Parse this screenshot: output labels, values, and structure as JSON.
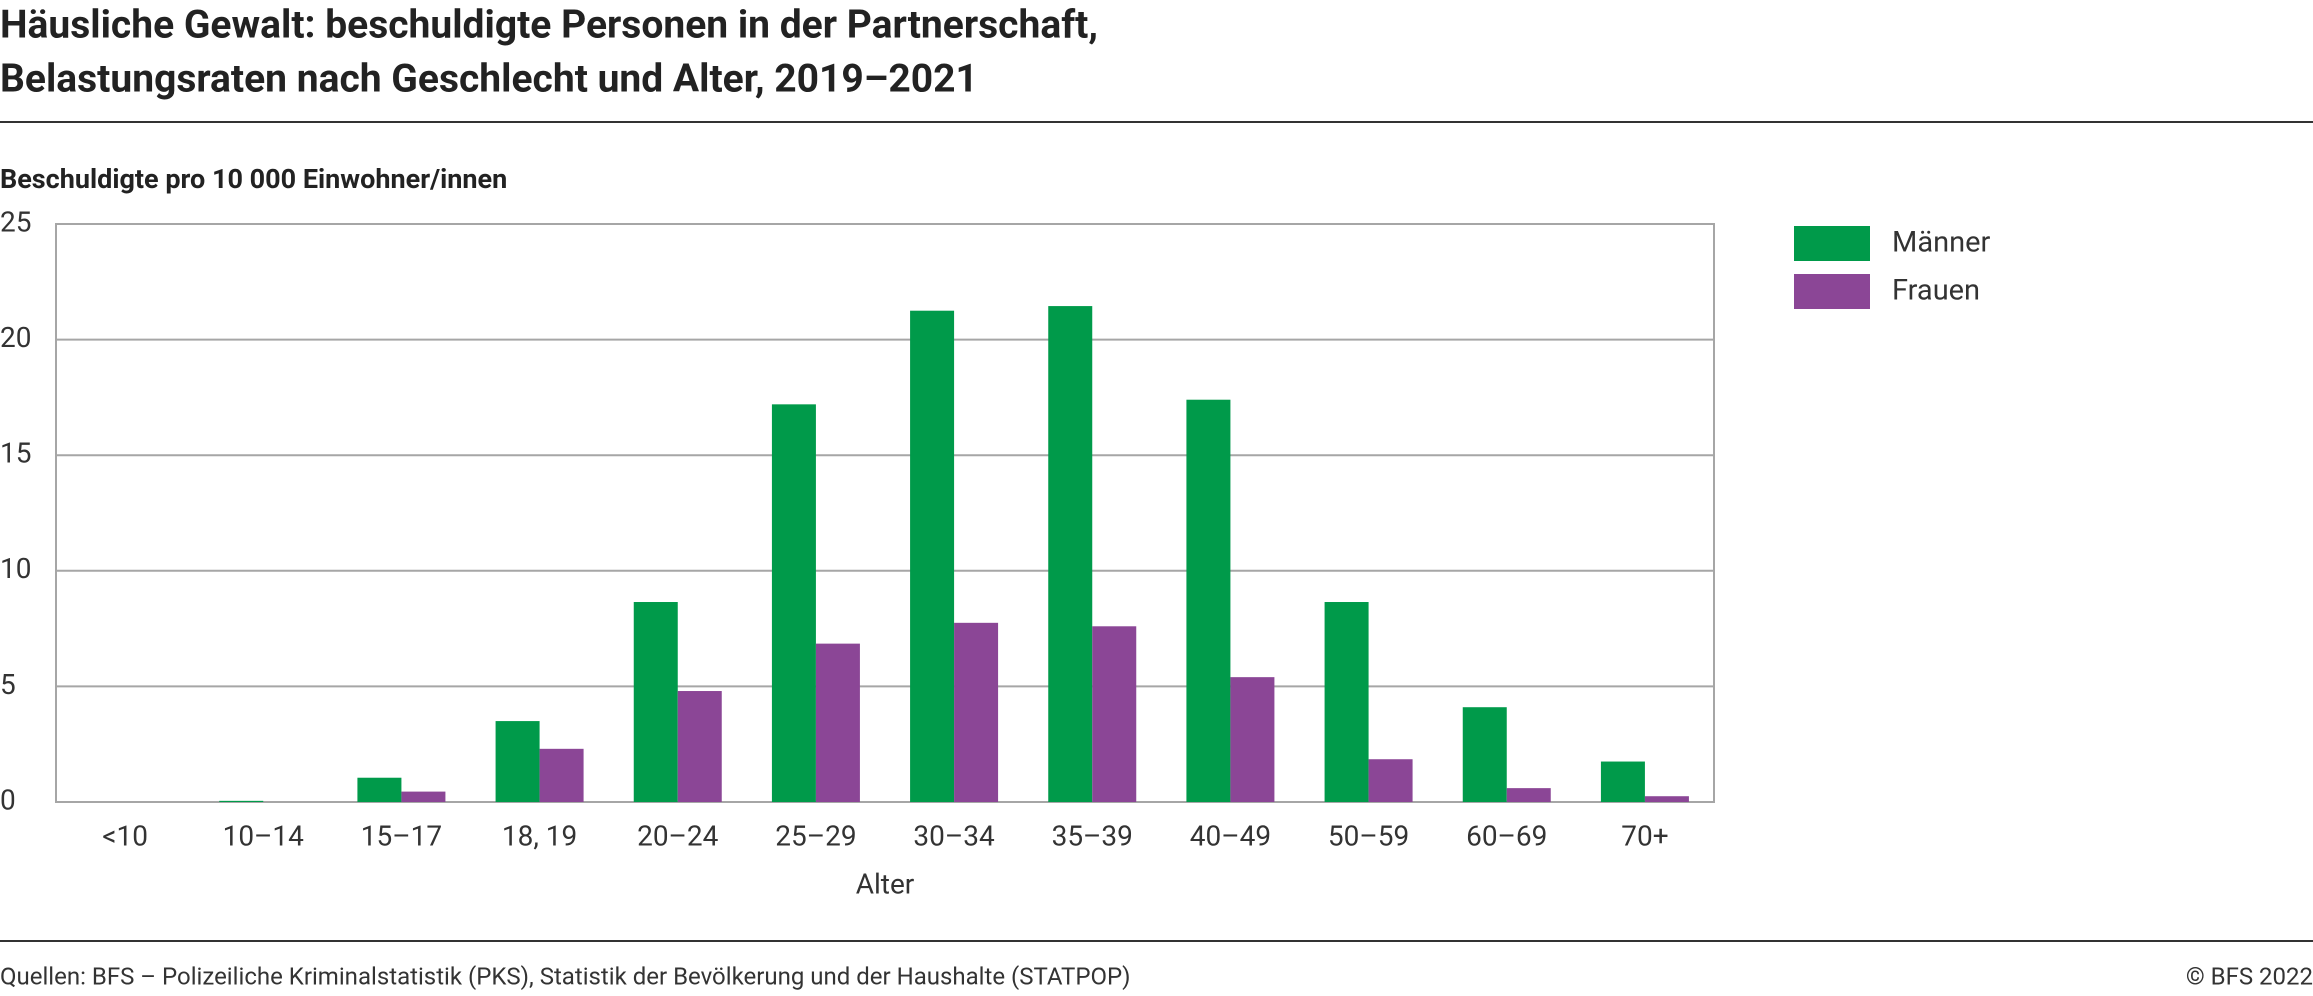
{
  "chart_data": {
    "type": "bar",
    "title": [
      "Häusliche Gewalt: beschuldigte Personen in der Partnerschaft,",
      "Belastungsraten nach Geschlecht und Alter, 2019–2021"
    ],
    "y_label": "Beschuldigte pro 10 000 Einwohner/innen",
    "x_label": "Alter",
    "categories": [
      "<10",
      "10–14",
      "15–17",
      "18, 19",
      "20–24",
      "25–29",
      "30–34",
      "35–39",
      "40–49",
      "50–59",
      "60–69",
      "70+"
    ],
    "series": [
      {
        "name": "Männer",
        "color": "#009a4a",
        "values": [
          0,
          0.05,
          1.05,
          3.5,
          8.65,
          17.2,
          21.25,
          21.45,
          17.4,
          8.65,
          4.1,
          1.75
        ]
      },
      {
        "name": "Frauen",
        "color": "#8b4696",
        "values": [
          0,
          0,
          0.45,
          2.3,
          4.8,
          6.85,
          7.75,
          7.6,
          5.4,
          1.85,
          0.6,
          0.25
        ]
      }
    ],
    "ylim": [
      0,
      25
    ],
    "yticks": [
      0,
      5,
      10,
      15,
      20,
      25
    ],
    "grid": true,
    "legend": "right",
    "source": "Quellen: BFS – Polizeiliche Kriminalstatistik (PKS), Statistik der Bevölkerung und der Haushalte (STATPOP)",
    "copyright": "© BFS 2022"
  }
}
